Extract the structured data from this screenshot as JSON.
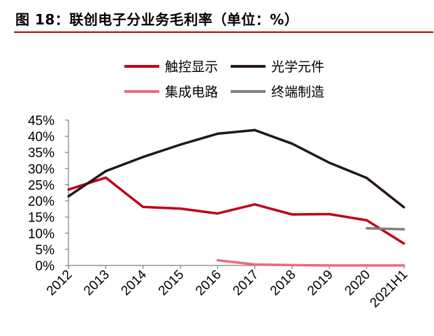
{
  "header": {
    "title": "图 18：联创电子分业务毛利率（单位：%）"
  },
  "colors": {
    "rule": "#c00000",
    "axis": "#7f7f7f"
  },
  "chart_data": {
    "type": "line",
    "title": "",
    "xlabel": "",
    "ylabel": "",
    "ylim": [
      0,
      45
    ],
    "y_ticks": [
      "0%",
      "5%",
      "10%",
      "15%",
      "20%",
      "25%",
      "30%",
      "35%",
      "40%",
      "45%"
    ],
    "categories": [
      "2012",
      "2013",
      "2014",
      "2015",
      "2016",
      "2017",
      "2018",
      "2019",
      "2020",
      "2021H1"
    ],
    "legend_position": "top",
    "series": [
      {
        "name": "触控显示",
        "color": "#c0001a",
        "values": [
          23.5,
          27.2,
          18.1,
          17.6,
          16.1,
          18.9,
          15.8,
          15.9,
          14.0,
          6.8
        ]
      },
      {
        "name": "光学元件",
        "color": "#231815",
        "values": [
          21.4,
          29.2,
          33.6,
          37.4,
          40.8,
          41.9,
          37.7,
          31.8,
          27.1,
          18.0
        ]
      },
      {
        "name": "集成电路",
        "color": "#ec6a80",
        "values": [
          null,
          null,
          null,
          null,
          1.6,
          0.3,
          0.1,
          0.0,
          0.0,
          0.0
        ]
      },
      {
        "name": "终端制造",
        "color": "#808080",
        "values": [
          null,
          null,
          null,
          null,
          null,
          null,
          null,
          null,
          11.5,
          11.2
        ]
      }
    ]
  }
}
